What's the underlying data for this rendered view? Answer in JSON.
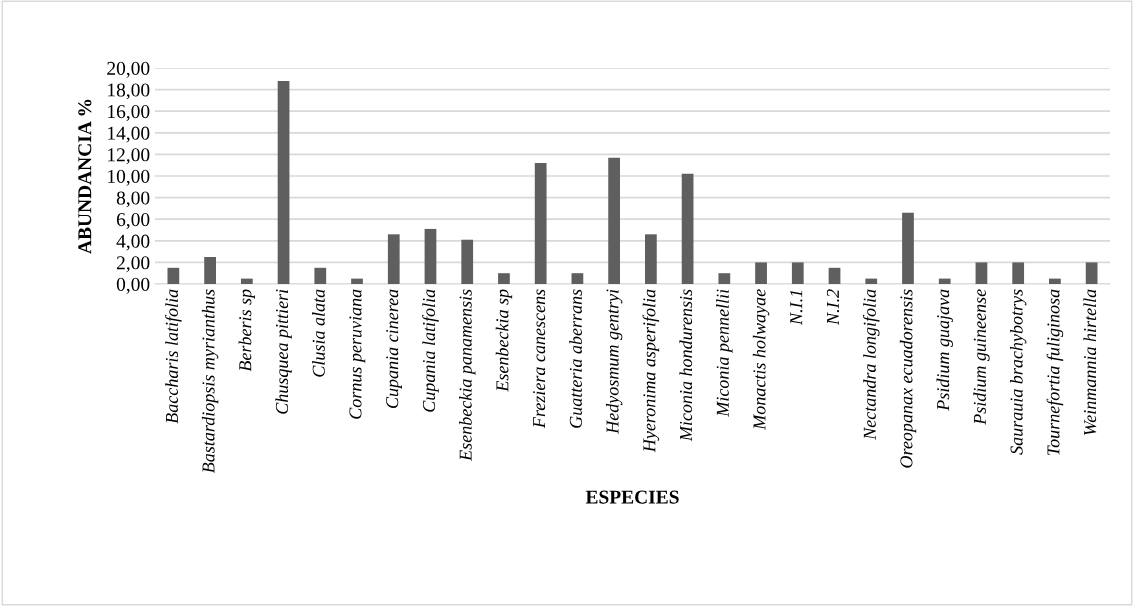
{
  "chart_data": {
    "type": "bar",
    "xlabel": "ESPECIES",
    "ylabel": "ABUNDANCIA %",
    "categories": [
      "Baccharis latifolia",
      "Bastardiopsis myrianthus",
      "Berberis sp",
      "Chusquea pittieri",
      "Clusia alata",
      "Cornus peruviana",
      "Cupania cinerea",
      "Cupania latifolia",
      "Esenbeckia panamensis",
      "Esenbeckia sp",
      "Freziera canescens",
      "Guatteria aberrans",
      "Hedyosmum gentryi",
      "Hyeronima asperifolia",
      "Miconia hondurensis",
      "Miconia pennellii",
      "Monactis holwayae",
      "N.I.1",
      "N.I.2",
      "Nectandra longifolia",
      "Oreopanax ecuadorensis",
      "Psidium guajava",
      "Psidium guineense",
      "Saurauia brachybotrys",
      "Tournefortia fuliginosa",
      "Weinmannia hirtella"
    ],
    "values": [
      1.5,
      2.5,
      0.5,
      18.8,
      1.5,
      0.5,
      4.6,
      5.1,
      4.1,
      1.0,
      11.2,
      1.0,
      11.7,
      4.6,
      10.2,
      1.0,
      2.0,
      2.0,
      1.5,
      0.5,
      6.6,
      0.5,
      2.0,
      2.0,
      0.5,
      2.0
    ],
    "color": "#5f5f5f",
    "ylim": [
      0,
      20
    ],
    "yticks": [
      {
        "value": 0,
        "label": "0,00"
      },
      {
        "value": 2,
        "label": "2,00"
      },
      {
        "value": 4,
        "label": "4,00"
      },
      {
        "value": 6,
        "label": "6,00"
      },
      {
        "value": 8,
        "label": "8,00"
      },
      {
        "value": 10,
        "label": "10,00"
      },
      {
        "value": 12,
        "label": "12,00"
      },
      {
        "value": 14,
        "label": "14,00"
      },
      {
        "value": 16,
        "label": "16,00"
      },
      {
        "value": 18,
        "label": "18,00"
      },
      {
        "value": 20,
        "label": "20,00"
      }
    ],
    "grid": "y",
    "legend": false
  }
}
